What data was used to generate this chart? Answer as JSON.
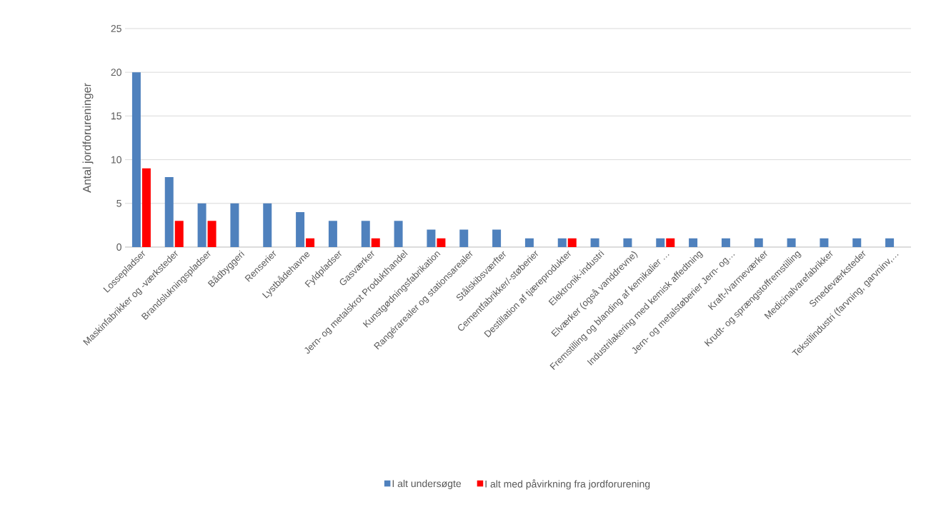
{
  "chart_data": {
    "type": "bar",
    "ylabel": "Antal jordforureninger",
    "categories": [
      "Lossepladser",
      "Maskinfabrikker og -værksteder",
      "Brandslukningspladser",
      "Bådbyggeri",
      "Renserier",
      "Lystbådehavne",
      "Fyldpladser",
      "Gasværker",
      "Jern- og metalskrot Produkthandel",
      "Kunstgødningsfabrikation",
      "Rangérarealer og stationsarealer",
      "Stålskibsværfter",
      "Cementfabrikker/-støberier",
      "Destillation af tjæreprodukter",
      "Elektronik-industri",
      "Elværker (også vanddrevne)",
      "Fremstilling og blanding af kemikalier …",
      "Industrilakering med kemisk affedtning",
      "Jern- og metalstøberier Jern- og…",
      "Kraft-/varmeværker",
      "Krudt- og sprængstoffremstilling",
      "Medicinalvarefabrikker",
      "Smedeværksteder",
      "Tekstilindustri (farvning, garvninv,…"
    ],
    "series": [
      {
        "name": "I alt undersøgte",
        "color": "#4f81bd",
        "values": [
          20,
          8,
          5,
          5,
          5,
          4,
          3,
          3,
          3,
          2,
          2,
          2,
          1,
          1,
          1,
          1,
          1,
          1,
          1,
          1,
          1,
          1,
          1,
          1
        ]
      },
      {
        "name": "I alt med påvirkning fra jordforurening",
        "color": "#ff0000",
        "values": [
          9,
          3,
          3,
          0,
          0,
          1,
          0,
          1,
          0,
          1,
          0,
          0,
          0,
          1,
          0,
          0,
          1,
          0,
          0,
          0,
          0,
          0,
          0,
          0
        ]
      }
    ],
    "ylim": [
      0,
      25
    ],
    "yticks": [
      0,
      5,
      10,
      15,
      20,
      25
    ],
    "grid": "y",
    "legend": "bottom"
  }
}
